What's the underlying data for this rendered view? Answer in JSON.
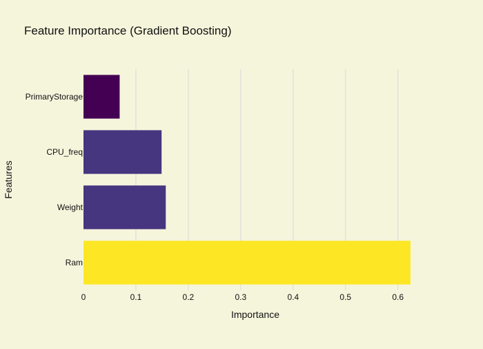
{
  "chart_data": {
    "type": "bar",
    "orientation": "horizontal",
    "title": "Feature Importance (Gradient Boosting)",
    "xlabel": "Importance",
    "ylabel": "Features",
    "categories": [
      "PrimaryStorage",
      "CPU_freq",
      "Weight",
      "Ram"
    ],
    "values": [
      0.069,
      0.149,
      0.157,
      0.624
    ],
    "bar_colors": [
      "#440154",
      "#46357f",
      "#46357f",
      "#fde725"
    ],
    "xlim": [
      0,
      0.65
    ],
    "xticks": [
      0,
      0.1,
      0.2,
      0.3,
      0.4,
      0.5,
      0.6
    ],
    "xtick_labels": [
      "0",
      "0.1",
      "0.2",
      "0.3",
      "0.4",
      "0.5",
      "0.6"
    ],
    "grid": "vertical",
    "legend": "none",
    "background_color": "#f5f5dc",
    "grid_color": "#d9d9d9"
  }
}
